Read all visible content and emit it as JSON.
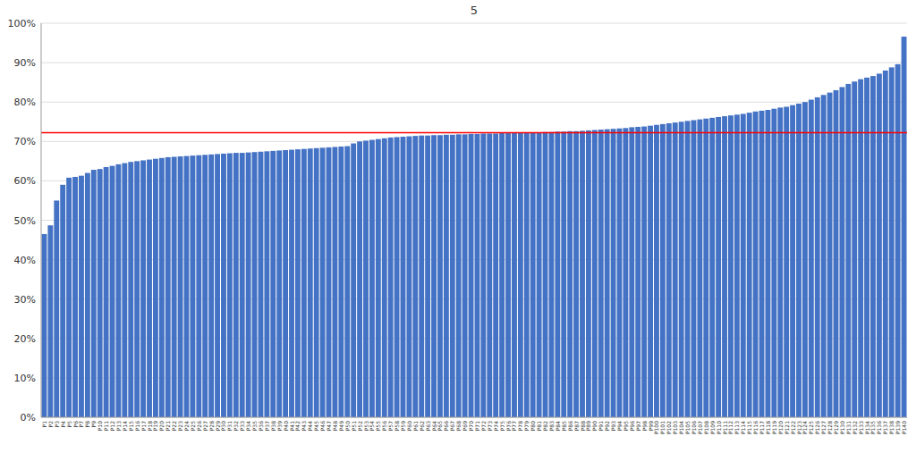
{
  "chart_data": {
    "type": "bar",
    "title": "5",
    "categories": [
      "P1",
      "P2",
      "P3",
      "P4",
      "P5",
      "P6",
      "P7",
      "P8",
      "P9",
      "P10",
      "P11",
      "P12",
      "P13",
      "P14",
      "P15",
      "P16",
      "P17",
      "P18",
      "P19",
      "P20",
      "P21",
      "P22",
      "P23",
      "P24",
      "P25",
      "P26",
      "P27",
      "P28",
      "P29",
      "P30",
      "P31",
      "P32",
      "P33",
      "P34",
      "P35",
      "P36",
      "P37",
      "P38",
      "P39",
      "P40",
      "P41",
      "P42",
      "P43",
      "P44",
      "P45",
      "P46",
      "P47",
      "P48",
      "P49",
      "P50",
      "P51",
      "P52",
      "P53",
      "P54",
      "P55",
      "P56",
      "P57",
      "P58",
      "P59",
      "P60",
      "P61",
      "P62",
      "P63",
      "P64",
      "P65",
      "P66",
      "P67",
      "P68",
      "P69",
      "P70",
      "P71",
      "P72",
      "P73",
      "P74",
      "P75",
      "P76",
      "P77",
      "P78",
      "P79",
      "P80",
      "P81",
      "P82",
      "P83",
      "P84",
      "P85",
      "P86",
      "P87",
      "P88",
      "P89",
      "P90",
      "P91",
      "P92",
      "P93",
      "P94",
      "P95",
      "P96",
      "P97",
      "P98",
      "P99",
      "P100",
      "P101",
      "P102",
      "P103",
      "P104",
      "P105",
      "P106",
      "P107",
      "P108",
      "P109",
      "P110",
      "P111",
      "P112",
      "P113",
      "P114",
      "P115",
      "P116",
      "P117",
      "P118",
      "P119",
      "P120",
      "P121",
      "P122",
      "P123",
      "P124",
      "P125",
      "P126",
      "P127",
      "P128",
      "P129",
      "P130",
      "P131",
      "P132",
      "P133",
      "P134",
      "P135",
      "P136",
      "P137",
      "P138",
      "P139",
      "P140"
    ],
    "values": [
      0.465,
      0.487,
      0.55,
      0.59,
      0.608,
      0.61,
      0.613,
      0.62,
      0.628,
      0.63,
      0.635,
      0.638,
      0.642,
      0.645,
      0.648,
      0.65,
      0.652,
      0.654,
      0.656,
      0.658,
      0.66,
      0.661,
      0.662,
      0.663,
      0.664,
      0.665,
      0.666,
      0.667,
      0.668,
      0.669,
      0.67,
      0.671,
      0.671,
      0.672,
      0.673,
      0.674,
      0.675,
      0.676,
      0.677,
      0.678,
      0.679,
      0.68,
      0.681,
      0.682,
      0.683,
      0.684,
      0.685,
      0.686,
      0.687,
      0.688,
      0.695,
      0.7,
      0.702,
      0.704,
      0.706,
      0.708,
      0.71,
      0.711,
      0.712,
      0.713,
      0.714,
      0.715,
      0.715,
      0.716,
      0.716,
      0.717,
      0.717,
      0.718,
      0.718,
      0.719,
      0.719,
      0.72,
      0.72,
      0.72,
      0.721,
      0.721,
      0.722,
      0.722,
      0.722,
      0.723,
      0.723,
      0.724,
      0.724,
      0.725,
      0.725,
      0.726,
      0.726,
      0.727,
      0.728,
      0.729,
      0.73,
      0.731,
      0.732,
      0.733,
      0.734,
      0.736,
      0.737,
      0.738,
      0.74,
      0.742,
      0.744,
      0.746,
      0.748,
      0.75,
      0.752,
      0.754,
      0.756,
      0.758,
      0.76,
      0.762,
      0.764,
      0.766,
      0.768,
      0.77,
      0.773,
      0.776,
      0.778,
      0.78,
      0.783,
      0.786,
      0.788,
      0.792,
      0.796,
      0.8,
      0.806,
      0.812,
      0.818,
      0.824,
      0.83,
      0.838,
      0.846,
      0.852,
      0.858,
      0.862,
      0.866,
      0.872,
      0.88,
      0.888,
      0.896,
      0.966
    ],
    "color": "#4472C4",
    "reference_line": {
      "value": 0.722,
      "color": "#FF0000"
    },
    "ylim": [
      0,
      1.0
    ],
    "yticks": [
      {
        "value": 0,
        "label": "0%"
      },
      {
        "value": 0.1,
        "label": "10%"
      },
      {
        "value": 0.2,
        "label": "20%"
      },
      {
        "value": 0.3,
        "label": "30%"
      },
      {
        "value": 0.4,
        "label": "40%"
      },
      {
        "value": 0.5,
        "label": "50%"
      },
      {
        "value": 0.6,
        "label": "60%"
      },
      {
        "value": 0.7,
        "label": "70%"
      },
      {
        "value": 0.8,
        "label": "80%"
      },
      {
        "value": 0.9,
        "label": "90%"
      },
      {
        "value": 1.0,
        "label": "100%"
      }
    ],
    "grid": true
  }
}
